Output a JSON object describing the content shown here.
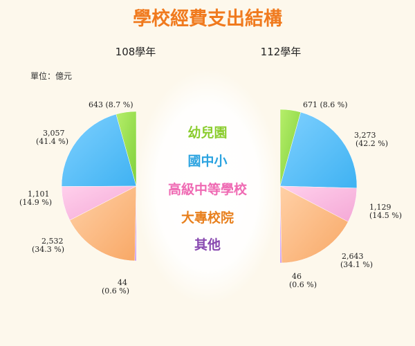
{
  "title": "學校經費支出結構",
  "unit": "單位：億元",
  "colors": {
    "title": "#f07a1e",
    "background": "#fdf8ec",
    "glow": "#ffffff"
  },
  "legend": [
    {
      "label": "幼兒園",
      "color": "#8bcd2f"
    },
    {
      "label": "國中小",
      "color": "#2ba3e0"
    },
    {
      "label": "高級中等學校",
      "color": "#ef6ab3"
    },
    {
      "label": "大專校院",
      "color": "#e8801e"
    },
    {
      "label": "其他",
      "color": "#8848b0"
    }
  ],
  "chart_data": [
    {
      "type": "pie",
      "title": "108學年",
      "categories": [
        "幼兒園",
        "國中小",
        "高級中等學校",
        "大專校院",
        "其他"
      ],
      "values": [
        643,
        3057,
        1101,
        2532,
        44
      ],
      "percents": [
        8.7,
        41.4,
        14.9,
        34.3,
        0.6
      ],
      "value_labels": [
        "643",
        "3,057",
        "1,101",
        "2,532",
        "44"
      ],
      "percent_labels": [
        "(8.7 %)",
        "(41.4 %)",
        "(14.9 %)",
        "(34.3 %)",
        "(0.6 %)"
      ],
      "orientation": "left-half"
    },
    {
      "type": "pie",
      "title": "112學年",
      "categories": [
        "幼兒園",
        "國中小",
        "高級中等學校",
        "大專校院",
        "其他"
      ],
      "values": [
        671,
        3273,
        1129,
        2643,
        46
      ],
      "percents": [
        8.6,
        42.2,
        14.5,
        34.1,
        0.6
      ],
      "value_labels": [
        "671",
        "3,273",
        "1,129",
        "2,643",
        "46"
      ],
      "percent_labels": [
        "(8.6 %)",
        "(42.2 %)",
        "(14.5 %)",
        "(34.1 %)",
        "(0.6 %)"
      ],
      "orientation": "right-half"
    }
  ]
}
